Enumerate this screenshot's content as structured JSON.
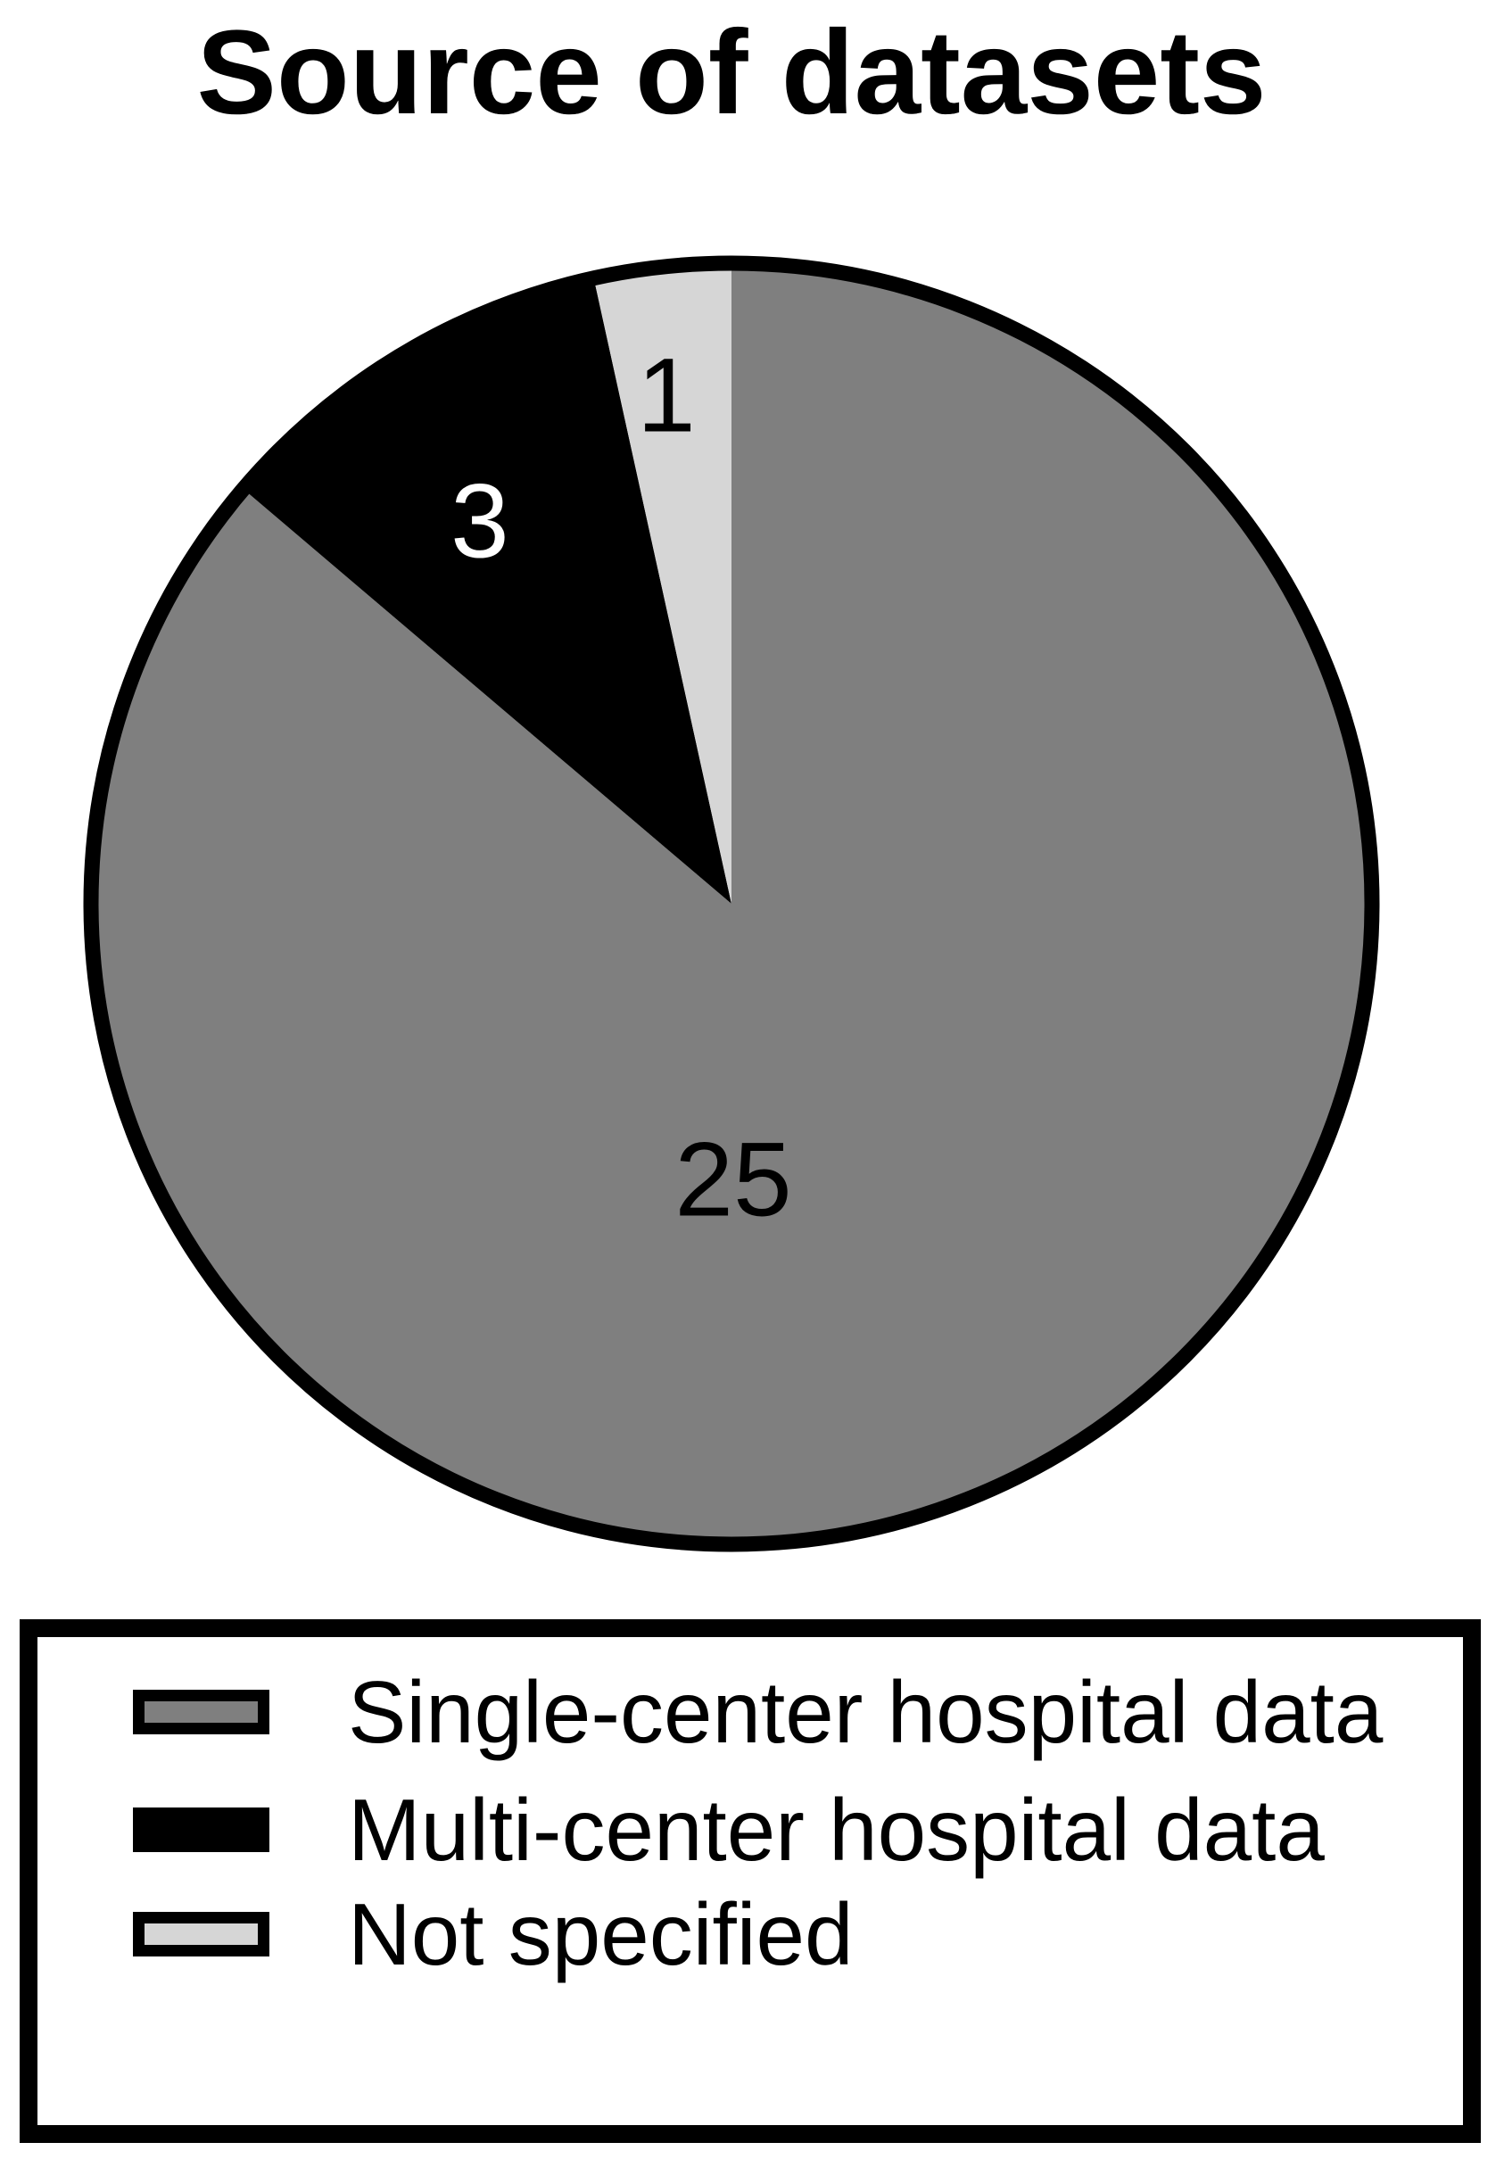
{
  "chart_data": {
    "type": "pie",
    "title": "Source of datasets",
    "series": [
      {
        "label": "Single-center hospital data",
        "value": 25,
        "color": "#7f7f7f",
        "label_color": "#000000"
      },
      {
        "label": "Multi-center hospital data",
        "value": 3,
        "color": "#000000",
        "label_color": "#ffffff"
      },
      {
        "label": "Not specified",
        "value": 1,
        "color": "#d6d6d6",
        "label_color": "#000000"
      }
    ],
    "start_angle": "12-oclock",
    "direction": "clockwise",
    "outline_color": "#000000",
    "background_color": "#ffffff",
    "legend_position": "bottom"
  }
}
